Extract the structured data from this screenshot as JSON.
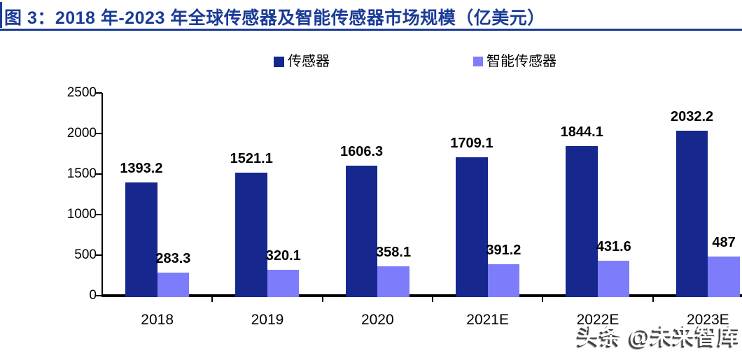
{
  "header": {
    "title": "图 3：2018 年-2023 年全球传感器及智能传感器市场规模（亿美元）",
    "accent_color": "#1a3b97"
  },
  "legend": [
    {
      "label": "传感器",
      "color": "#16278e"
    },
    {
      "label": "智能传感器",
      "color": "#7d7dfb"
    }
  ],
  "watermark": "头条 @未来智库",
  "chart_data": {
    "type": "bar",
    "title": "2018年-2023年全球传感器及智能传感器市场规模（亿美元）",
    "categories": [
      "2018",
      "2019",
      "2020",
      "2021E",
      "2022E",
      "2023E"
    ],
    "series": [
      {
        "name": "传感器",
        "color": "#16278e",
        "values": [
          1393.2,
          1521.1,
          1606.3,
          1709.1,
          1844.1,
          2032.2
        ],
        "labels": [
          "1393.2",
          "1521.1",
          "1606.3",
          "1709.1",
          "1844.1",
          "2032.2"
        ]
      },
      {
        "name": "智能传感器",
        "color": "#7d7dfb",
        "values": [
          283.3,
          320.1,
          358.1,
          391.2,
          431.6,
          487
        ],
        "labels": [
          "283.3",
          "320.1",
          "358.1",
          "391.2",
          "431.6",
          "487"
        ]
      }
    ],
    "xlabel": "",
    "ylabel": "",
    "ylim": [
      0,
      2500
    ],
    "yticks": [
      0,
      500,
      1000,
      1500,
      2000,
      2500
    ],
    "grid": false,
    "legend_position": "top"
  }
}
